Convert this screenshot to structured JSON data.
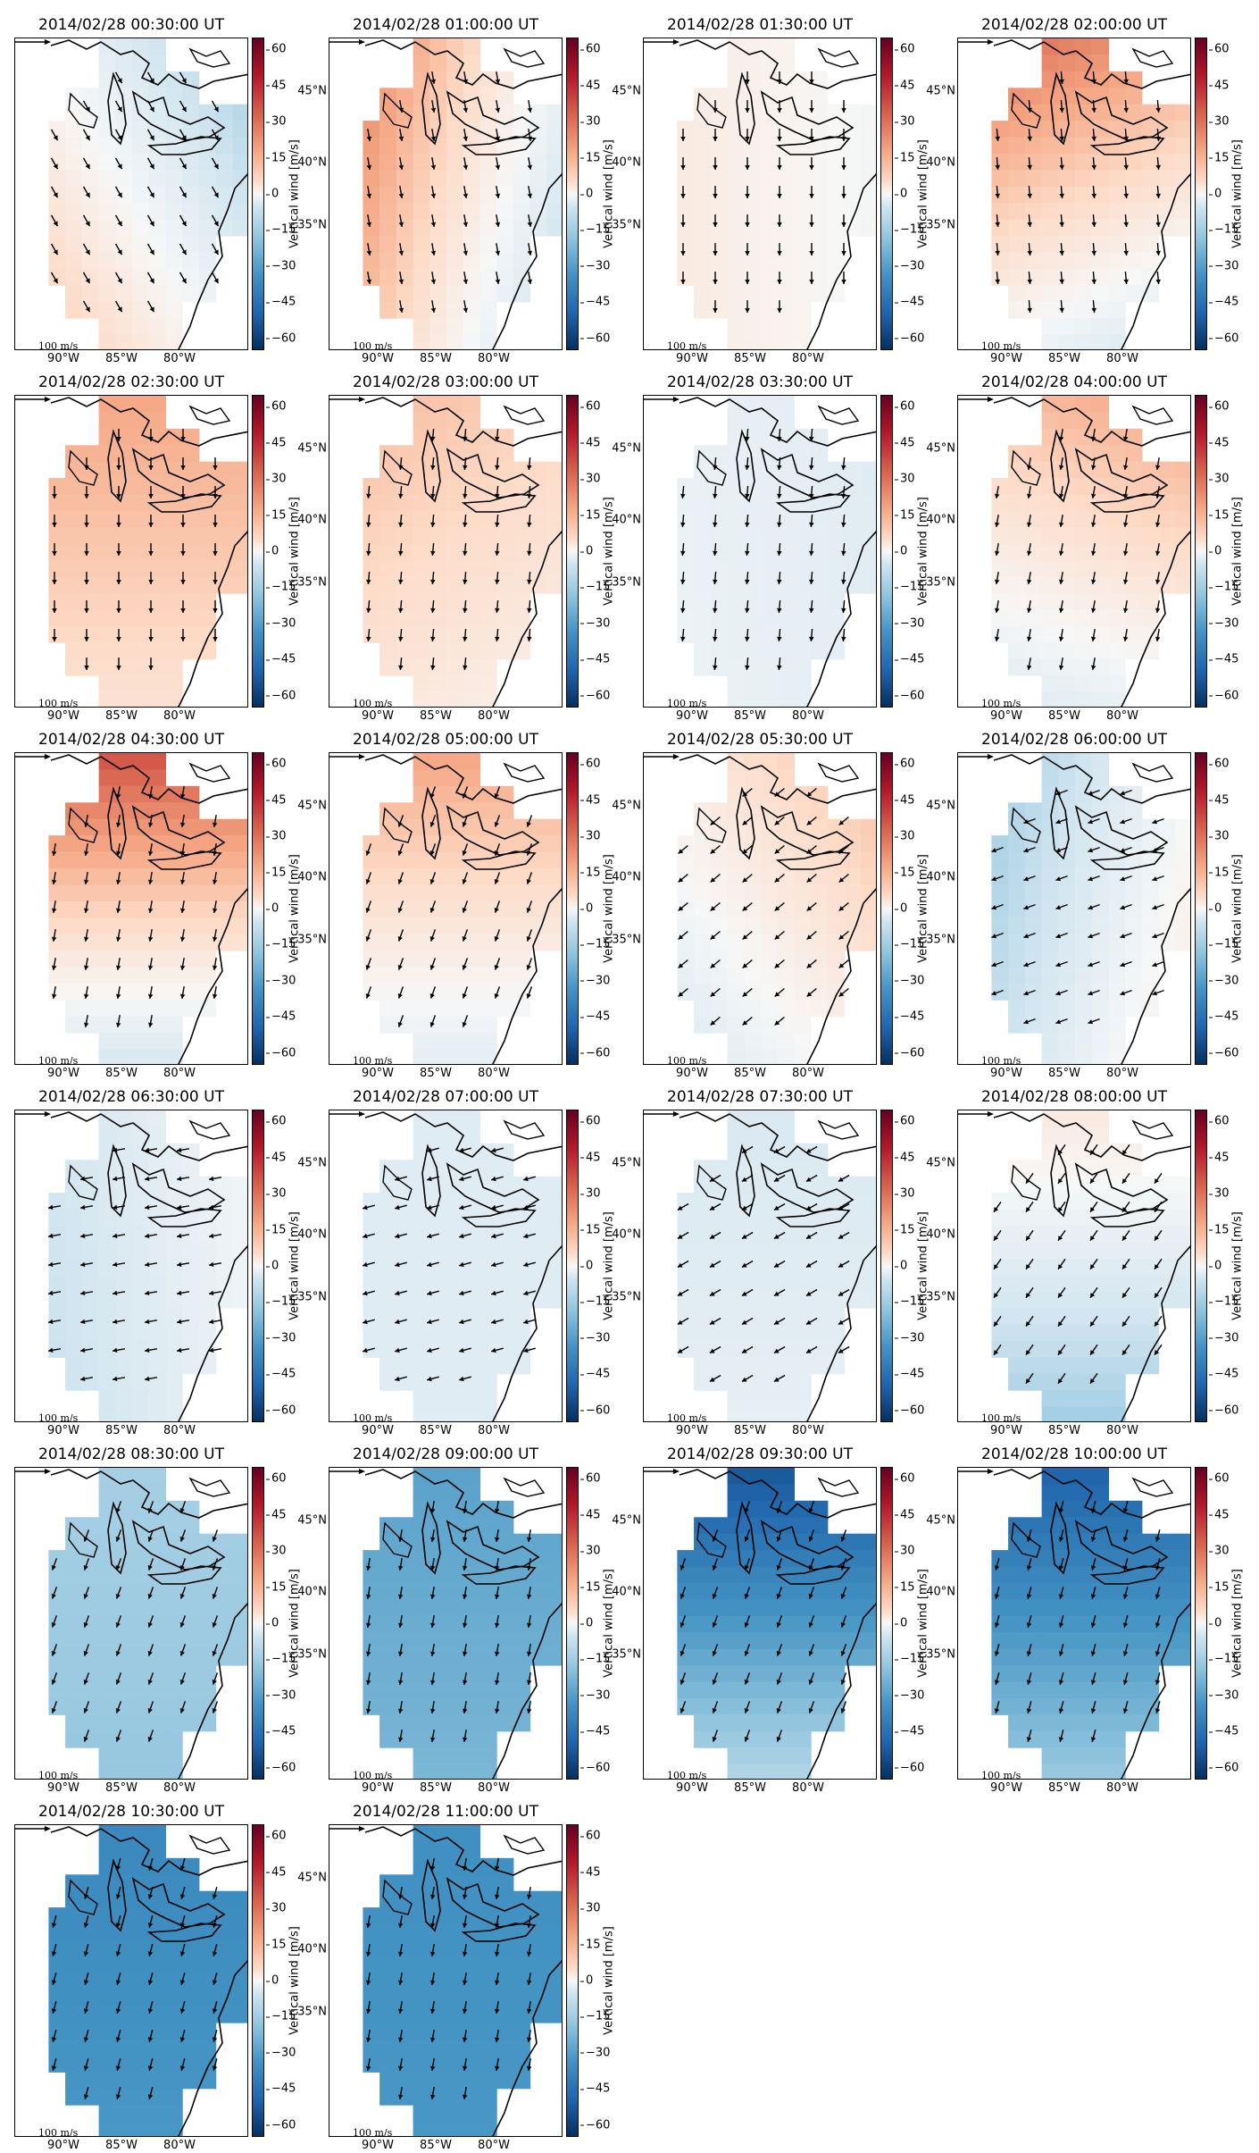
{
  "colorbar": {
    "label": "Vertical wind [m/s]",
    "ticks": [
      "60",
      "45",
      "30",
      "15",
      "0",
      "−15",
      "−30",
      "−45",
      "−60"
    ],
    "vmin": -65,
    "vmax": 65,
    "colormap": [
      "#053061",
      "#2166ac",
      "#4393c3",
      "#92c5de",
      "#d1e5f0",
      "#f7f7f7",
      "#fddbc7",
      "#f4a582",
      "#d6604d",
      "#b2182b",
      "#67001f"
    ]
  },
  "x_ticks": [
    "90°W",
    "85°W",
    "80°W"
  ],
  "y_ticks": [
    "45°N",
    "40°N",
    "35°N"
  ],
  "reference_arrow_label": "100 m/s",
  "chart_data": [
    {
      "type": "heatmap",
      "title": "2014/02/28 00:30:00 UT",
      "north_mean": -10,
      "south_mean": 8,
      "east_bias": -12,
      "wind_dir_deg": 150
    },
    {
      "type": "heatmap",
      "title": "2014/02/28 01:00:00 UT",
      "north_mean": 18,
      "south_mean": 4,
      "east_bias": -20,
      "wind_dir_deg": 170
    },
    {
      "type": "heatmap",
      "title": "2014/02/28 01:30:00 UT",
      "north_mean": 3,
      "south_mean": 3,
      "east_bias": -4,
      "wind_dir_deg": 180
    },
    {
      "type": "heatmap",
      "title": "2014/02/28 02:00:00 UT",
      "north_mean": 32,
      "south_mean": -5,
      "east_bias": -6,
      "wind_dir_deg": 175
    },
    {
      "type": "heatmap",
      "title": "2014/02/28 02:30:00 UT",
      "north_mean": 25,
      "south_mean": 10,
      "east_bias": 0,
      "wind_dir_deg": 180
    },
    {
      "type": "heatmap",
      "title": "2014/02/28 03:00:00 UT",
      "north_mean": 18,
      "south_mean": 6,
      "east_bias": -3,
      "wind_dir_deg": 185
    },
    {
      "type": "heatmap",
      "title": "2014/02/28 03:30:00 UT",
      "north_mean": -6,
      "south_mean": -5,
      "east_bias": -2,
      "wind_dir_deg": 185
    },
    {
      "type": "heatmap",
      "title": "2014/02/28 04:00:00 UT",
      "north_mean": 22,
      "south_mean": -6,
      "east_bias": 4,
      "wind_dir_deg": 190
    },
    {
      "type": "heatmap",
      "title": "2014/02/28 04:30:00 UT",
      "north_mean": 40,
      "south_mean": -10,
      "east_bias": 0,
      "wind_dir_deg": 190
    },
    {
      "type": "heatmap",
      "title": "2014/02/28 05:00:00 UT",
      "north_mean": 25,
      "south_mean": -6,
      "east_bias": 0,
      "wind_dir_deg": 200
    },
    {
      "type": "heatmap",
      "title": "2014/02/28 05:30:00 UT",
      "north_mean": 12,
      "south_mean": -4,
      "east_bias": 8,
      "wind_dir_deg": 230
    },
    {
      "type": "heatmap",
      "title": "2014/02/28 06:00:00 UT",
      "north_mean": -14,
      "south_mean": -6,
      "east_bias": 12,
      "wind_dir_deg": 250
    },
    {
      "type": "heatmap",
      "title": "2014/02/28 06:30:00 UT",
      "north_mean": -8,
      "south_mean": -10,
      "east_bias": 6,
      "wind_dir_deg": 260
    },
    {
      "type": "heatmap",
      "title": "2014/02/28 07:00:00 UT",
      "north_mean": -8,
      "south_mean": -8,
      "east_bias": 0,
      "wind_dir_deg": 255
    },
    {
      "type": "heatmap",
      "title": "2014/02/28 07:30:00 UT",
      "north_mean": -10,
      "south_mean": -6,
      "east_bias": 0,
      "wind_dir_deg": 240
    },
    {
      "type": "heatmap",
      "title": "2014/02/28 08:00:00 UT",
      "north_mean": 6,
      "south_mean": -22,
      "east_bias": 0,
      "wind_dir_deg": 215
    },
    {
      "type": "heatmap",
      "title": "2014/02/28 08:30:00 UT",
      "north_mean": -22,
      "south_mean": -25,
      "east_bias": 0,
      "wind_dir_deg": 200
    },
    {
      "type": "heatmap",
      "title": "2014/02/28 09:00:00 UT",
      "north_mean": -35,
      "south_mean": -30,
      "east_bias": 0,
      "wind_dir_deg": 190
    },
    {
      "type": "heatmap",
      "title": "2014/02/28 09:30:00 UT",
      "north_mean": -55,
      "south_mean": -20,
      "east_bias": 0,
      "wind_dir_deg": 200
    },
    {
      "type": "heatmap",
      "title": "2014/02/28 10:00:00 UT",
      "north_mean": -52,
      "south_mean": -25,
      "east_bias": 0,
      "wind_dir_deg": 195
    },
    {
      "type": "heatmap",
      "title": "2014/02/28 10:30:00 UT",
      "north_mean": -42,
      "south_mean": -38,
      "east_bias": 0,
      "wind_dir_deg": 195
    },
    {
      "type": "heatmap",
      "title": "2014/02/28 11:00:00 UT",
      "north_mean": -40,
      "south_mean": -38,
      "east_bias": 0,
      "wind_dir_deg": 190
    }
  ]
}
